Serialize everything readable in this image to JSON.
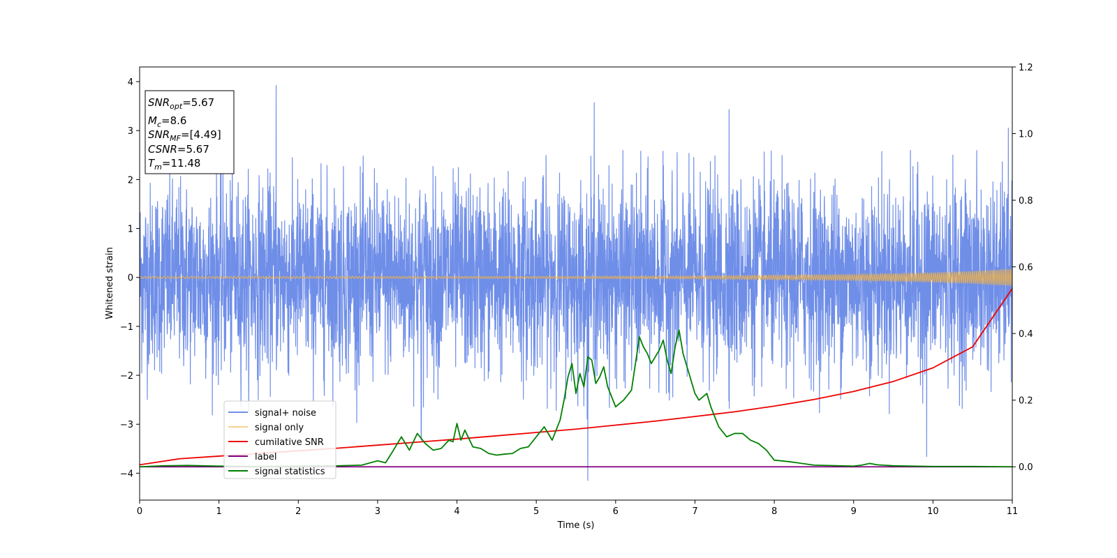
{
  "chart_data": {
    "type": "line",
    "xlabel": "Time (s)",
    "ylabel": "Whitened strain",
    "xlim": [
      0,
      11
    ],
    "ylim_left": [
      -4.55,
      4.3
    ],
    "ylim_right": [
      -0.1,
      1.2
    ],
    "x_ticks": [
      0,
      1,
      2,
      3,
      4,
      5,
      6,
      7,
      8,
      9,
      10,
      11
    ],
    "x_tick_labels": [
      "0",
      "1",
      "2",
      "3",
      "4",
      "5",
      "6",
      "7",
      "8",
      "9",
      "10",
      "11"
    ],
    "y_left_ticks": [
      -4,
      -3,
      -2,
      -1,
      0,
      1,
      2,
      3,
      4
    ],
    "y_left_tick_labels": [
      "−4",
      "−3",
      "−2",
      "−1",
      "0",
      "1",
      "2",
      "3",
      "4"
    ],
    "y_right_ticks": [
      0.0,
      0.2,
      0.4,
      0.6,
      0.8,
      1.0,
      1.2
    ],
    "y_right_tick_labels": [
      "0.0",
      "0.2",
      "0.4",
      "0.6",
      "0.8",
      "1.0",
      "1.2"
    ],
    "legend_location": "lower-left",
    "grid": false,
    "info_box": {
      "snr_opt": "=5.67",
      "mc": "=8.6",
      "snr_mf": "=[4.49]",
      "csnr": "=5.67",
      "tm": "=11.48"
    },
    "series": [
      {
        "name": "signal+ noise",
        "color": "#6f8ee8",
        "axis": "left",
        "style": "noise",
        "sigma": 1.0,
        "peaks": [
          [
            1.72,
            3.92
          ],
          [
            5.65,
            -4.15
          ],
          [
            5.73,
            3.57
          ],
          [
            7.43,
            3.43
          ],
          [
            9.92,
            -3.66
          ],
          [
            10.95,
            3.05
          ],
          [
            3.55,
            -3.32
          ]
        ]
      },
      {
        "name": "signal only",
        "color": "#f5b342",
        "axis": "left",
        "style": "chirp",
        "envelope": {
          "x": [
            0,
            5,
            7,
            9,
            10,
            10.5,
            11
          ],
          "y": [
            0.02,
            0.02,
            0.03,
            0.06,
            0.1,
            0.13,
            0.18
          ]
        }
      },
      {
        "name": "cumilative SNR",
        "color": "#ee0000",
        "axis": "right",
        "x": [
          0,
          0.5,
          1,
          1.5,
          2,
          2.5,
          3,
          3.5,
          4,
          4.5,
          5,
          5.5,
          6,
          6.5,
          7,
          7.5,
          8,
          8.5,
          9,
          9.5,
          10,
          10.5,
          11
        ],
        "y": [
          0.006,
          0.024,
          0.032,
          0.04,
          0.048,
          0.056,
          0.065,
          0.074,
          0.083,
          0.093,
          0.103,
          0.113,
          0.125,
          0.137,
          0.151,
          0.165,
          0.182,
          0.202,
          0.226,
          0.256,
          0.297,
          0.36,
          0.535
        ]
      },
      {
        "name": "label",
        "color": "#800080",
        "axis": "right",
        "x": [
          0,
          11
        ],
        "y": [
          0,
          0
        ]
      },
      {
        "name": "signal statistics",
        "color": "#008000",
        "axis": "right",
        "x": [
          0,
          0.3,
          0.6,
          1,
          1.5,
          2,
          2.5,
          2.8,
          3.0,
          3.1,
          3.2,
          3.3,
          3.4,
          3.5,
          3.6,
          3.7,
          3.8,
          3.9,
          3.95,
          4.0,
          4.05,
          4.1,
          4.2,
          4.3,
          4.4,
          4.5,
          4.6,
          4.7,
          4.8,
          4.9,
          5.0,
          5.1,
          5.2,
          5.3,
          5.35,
          5.4,
          5.45,
          5.5,
          5.55,
          5.6,
          5.65,
          5.7,
          5.75,
          5.8,
          5.85,
          5.9,
          6.0,
          6.1,
          6.2,
          6.25,
          6.3,
          6.35,
          6.4,
          6.45,
          6.5,
          6.55,
          6.6,
          6.65,
          6.7,
          6.75,
          6.8,
          6.85,
          6.9,
          7.0,
          7.05,
          7.1,
          7.15,
          7.2,
          7.3,
          7.4,
          7.5,
          7.6,
          7.7,
          7.8,
          7.9,
          8.0,
          8.2,
          8.5,
          9.0,
          9.1,
          9.2,
          9.3,
          9.5,
          10,
          10.5,
          11
        ],
        "y": [
          0,
          0.003,
          0.004,
          0.002,
          0.001,
          0.002,
          0.003,
          0.005,
          0.018,
          0.012,
          0.05,
          0.09,
          0.05,
          0.1,
          0.07,
          0.05,
          0.055,
          0.08,
          0.075,
          0.13,
          0.08,
          0.11,
          0.06,
          0.055,
          0.04,
          0.035,
          0.038,
          0.04,
          0.055,
          0.06,
          0.09,
          0.12,
          0.08,
          0.14,
          0.2,
          0.27,
          0.31,
          0.22,
          0.28,
          0.24,
          0.33,
          0.32,
          0.25,
          0.27,
          0.3,
          0.24,
          0.18,
          0.2,
          0.23,
          0.31,
          0.39,
          0.36,
          0.34,
          0.31,
          0.33,
          0.35,
          0.38,
          0.32,
          0.28,
          0.36,
          0.41,
          0.34,
          0.3,
          0.22,
          0.2,
          0.21,
          0.22,
          0.18,
          0.12,
          0.09,
          0.1,
          0.1,
          0.08,
          0.07,
          0.05,
          0.02,
          0.015,
          0.005,
          0.002,
          0.005,
          0.01,
          0.006,
          0.003,
          0.001,
          0.001,
          0.0
        ]
      }
    ]
  }
}
